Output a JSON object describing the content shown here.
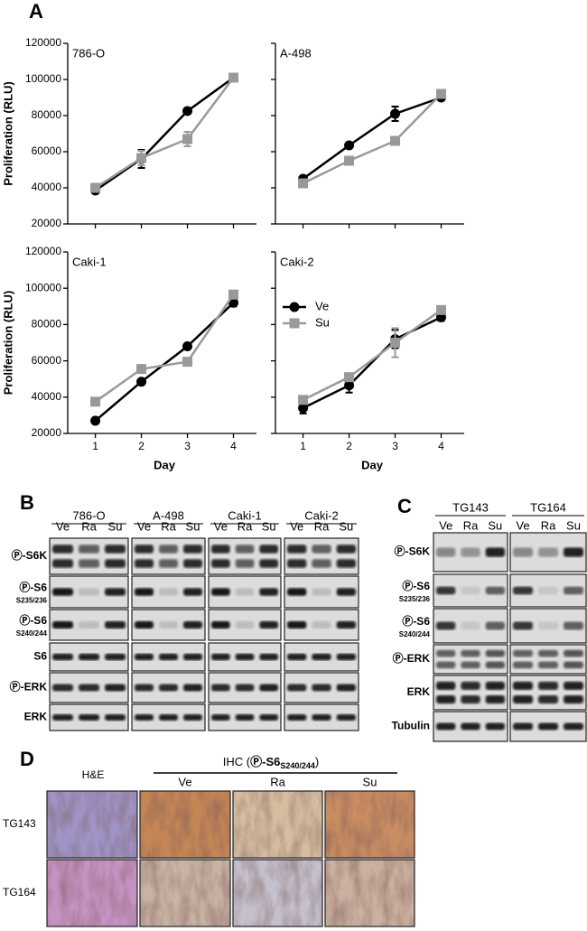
{
  "panel_labels": [
    "A",
    "B",
    "C",
    "D"
  ],
  "chart_data": [
    {
      "type": "line",
      "title": "786-O",
      "ylabel": "Proliferation (RLU)",
      "x": [
        1,
        2,
        3,
        4
      ],
      "xlim": [
        0.4,
        4.5
      ],
      "xticks": [
        1,
        2,
        3,
        4
      ],
      "ylim": [
        20000,
        120000
      ],
      "yticks": [
        20000,
        40000,
        60000,
        80000,
        100000,
        120000
      ],
      "series": [
        {
          "color": "#000000",
          "marker": "circle",
          "values": [
            38500,
            56000,
            82500,
            101000
          ],
          "errors": [
            1000,
            5000,
            1000,
            1000
          ]
        },
        {
          "color": "#999999",
          "marker": "square",
          "values": [
            40000,
            56500,
            67000,
            101000
          ],
          "errors": [
            1000,
            4000,
            4000,
            1000
          ]
        }
      ]
    },
    {
      "type": "line",
      "title": "A-498",
      "x": [
        1,
        2,
        3,
        4
      ],
      "xlim": [
        0.4,
        4.5
      ],
      "xticks": [
        1,
        2,
        3,
        4
      ],
      "ylim": [
        20000,
        120000
      ],
      "yticks": [
        20000,
        40000,
        60000,
        80000,
        100000,
        120000
      ],
      "series": [
        {
          "color": "#000000",
          "marker": "circle",
          "values": [
            45000,
            63500,
            81000,
            90000
          ],
          "errors": [
            1000,
            1000,
            4000,
            1000
          ]
        },
        {
          "color": "#999999",
          "marker": "square",
          "values": [
            42500,
            55000,
            66000,
            92000
          ],
          "errors": [
            1000,
            1000,
            1000,
            1000
          ]
        }
      ]
    },
    {
      "type": "line",
      "title": "Caki-1",
      "ylabel": "Proliferation (RLU)",
      "xlabel": "Day",
      "x": [
        1,
        2,
        3,
        4
      ],
      "xlim": [
        0.4,
        4.5
      ],
      "xticks": [
        1,
        2,
        3,
        4
      ],
      "ylim": [
        20000,
        120000
      ],
      "yticks": [
        20000,
        40000,
        60000,
        80000,
        100000,
        120000
      ],
      "series": [
        {
          "color": "#000000",
          "marker": "circle",
          "values": [
            27000,
            48500,
            68000,
            92000
          ],
          "errors": [
            1000,
            1000,
            1000,
            2000
          ]
        },
        {
          "color": "#999999",
          "marker": "square",
          "values": [
            37500,
            55500,
            59500,
            96500
          ],
          "errors": [
            1000,
            1000,
            1000,
            1000
          ]
        }
      ]
    },
    {
      "type": "line",
      "title": "Caki-2",
      "xlabel": "Day",
      "legend": "upper left",
      "x": [
        1,
        2,
        3,
        4
      ],
      "xlim": [
        0.4,
        4.5
      ],
      "xticks": [
        1,
        2,
        3,
        4
      ],
      "ylim": [
        20000,
        120000
      ],
      "yticks": [
        20000,
        40000,
        60000,
        80000,
        100000,
        120000
      ],
      "series": [
        {
          "name": "Ve",
          "color": "#000000",
          "marker": "circle",
          "values": [
            34000,
            46500,
            72000,
            84000
          ],
          "errors": [
            3000,
            4000,
            5000,
            2000
          ]
        },
        {
          "name": "Su",
          "color": "#999999",
          "marker": "square",
          "values": [
            38500,
            51000,
            70000,
            88000
          ],
          "errors": [
            1000,
            1000,
            8000,
            1000
          ]
        }
      ]
    }
  ],
  "blot_b": {
    "groups": [
      "786-O",
      "A-498",
      "Caki-1",
      "Caki-2"
    ],
    "lanes": [
      "Ve",
      "Ra",
      "Su"
    ],
    "rows": [
      {
        "label": "Ⓟ-S6K"
      },
      {
        "label": "Ⓟ-S6",
        "sub": "S235/236"
      },
      {
        "label": "Ⓟ-S6",
        "sub": "S240/244"
      },
      {
        "label": "S6"
      },
      {
        "label": "Ⓟ-ERK"
      },
      {
        "label": "ERK"
      }
    ]
  },
  "blot_c": {
    "groups": [
      "TG143",
      "TG164"
    ],
    "lanes": [
      "Ve",
      "Ra",
      "Su"
    ],
    "rows": [
      {
        "label": "Ⓟ-S6K"
      },
      {
        "label": "Ⓟ-S6",
        "sub": "S235/236"
      },
      {
        "label": "Ⓟ-S6",
        "sub": "S240/244"
      },
      {
        "label": "Ⓟ-ERK"
      },
      {
        "label": "ERK"
      },
      {
        "label": "Tubulin"
      }
    ]
  },
  "ihc": {
    "he_label": "H&E",
    "title_prefix": "IHC (",
    "title_target": "Ⓟ-S6",
    "title_sub": "S240/244",
    "title_suffix": ")",
    "columns": [
      "Ve",
      "Ra",
      "Su"
    ],
    "rows": [
      "TG143",
      "TG164"
    ]
  }
}
